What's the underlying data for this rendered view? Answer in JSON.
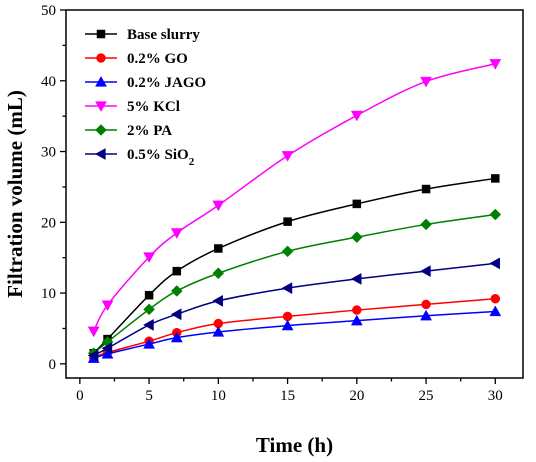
{
  "chart_data": {
    "type": "line",
    "title": "",
    "xlabel": "Time (h)",
    "ylabel": "Filtration volume (mL)",
    "xlim": [
      -1,
      32
    ],
    "ylim": [
      -2,
      50
    ],
    "xticks": [
      0,
      5,
      10,
      15,
      20,
      25,
      30
    ],
    "yticks": [
      0,
      10,
      20,
      30,
      40,
      50
    ],
    "grid": false,
    "legend_position": "top-left",
    "x": [
      1,
      2,
      5,
      7,
      10,
      15,
      20,
      25,
      30
    ],
    "series": [
      {
        "name": "Base slurry",
        "color": "#000000",
        "marker": "square",
        "values": [
          1.5,
          3.5,
          9.7,
          13.1,
          16.3,
          20.1,
          22.6,
          24.7,
          26.2
        ]
      },
      {
        "name": "0.2% GO",
        "color": "#ff0000",
        "marker": "circle",
        "values": [
          0.9,
          1.6,
          3.2,
          4.4,
          5.7,
          6.7,
          7.6,
          8.4,
          9.2
        ]
      },
      {
        "name": "0.2% JAGO",
        "color": "#0000ff",
        "marker": "triangle-up",
        "values": [
          0.8,
          1.4,
          2.8,
          3.7,
          4.5,
          5.4,
          6.1,
          6.8,
          7.4
        ]
      },
      {
        "name": "5% KCl",
        "color": "#ff00ff",
        "marker": "triangle-down",
        "values": [
          4.6,
          8.3,
          15.1,
          18.5,
          22.4,
          29.4,
          35.1,
          39.9,
          42.4
        ]
      },
      {
        "name": "2% PA",
        "color": "#008000",
        "marker": "diamond",
        "values": [
          1.5,
          3.1,
          7.7,
          10.3,
          12.8,
          15.9,
          17.9,
          19.7,
          21.1
        ]
      },
      {
        "name": "0.5% SiO",
        "subscript": "2",
        "color": "#000080",
        "marker": "triangle-left",
        "values": [
          1.2,
          2.2,
          5.5,
          7.0,
          8.9,
          10.7,
          12.0,
          13.1,
          14.2
        ]
      }
    ]
  }
}
